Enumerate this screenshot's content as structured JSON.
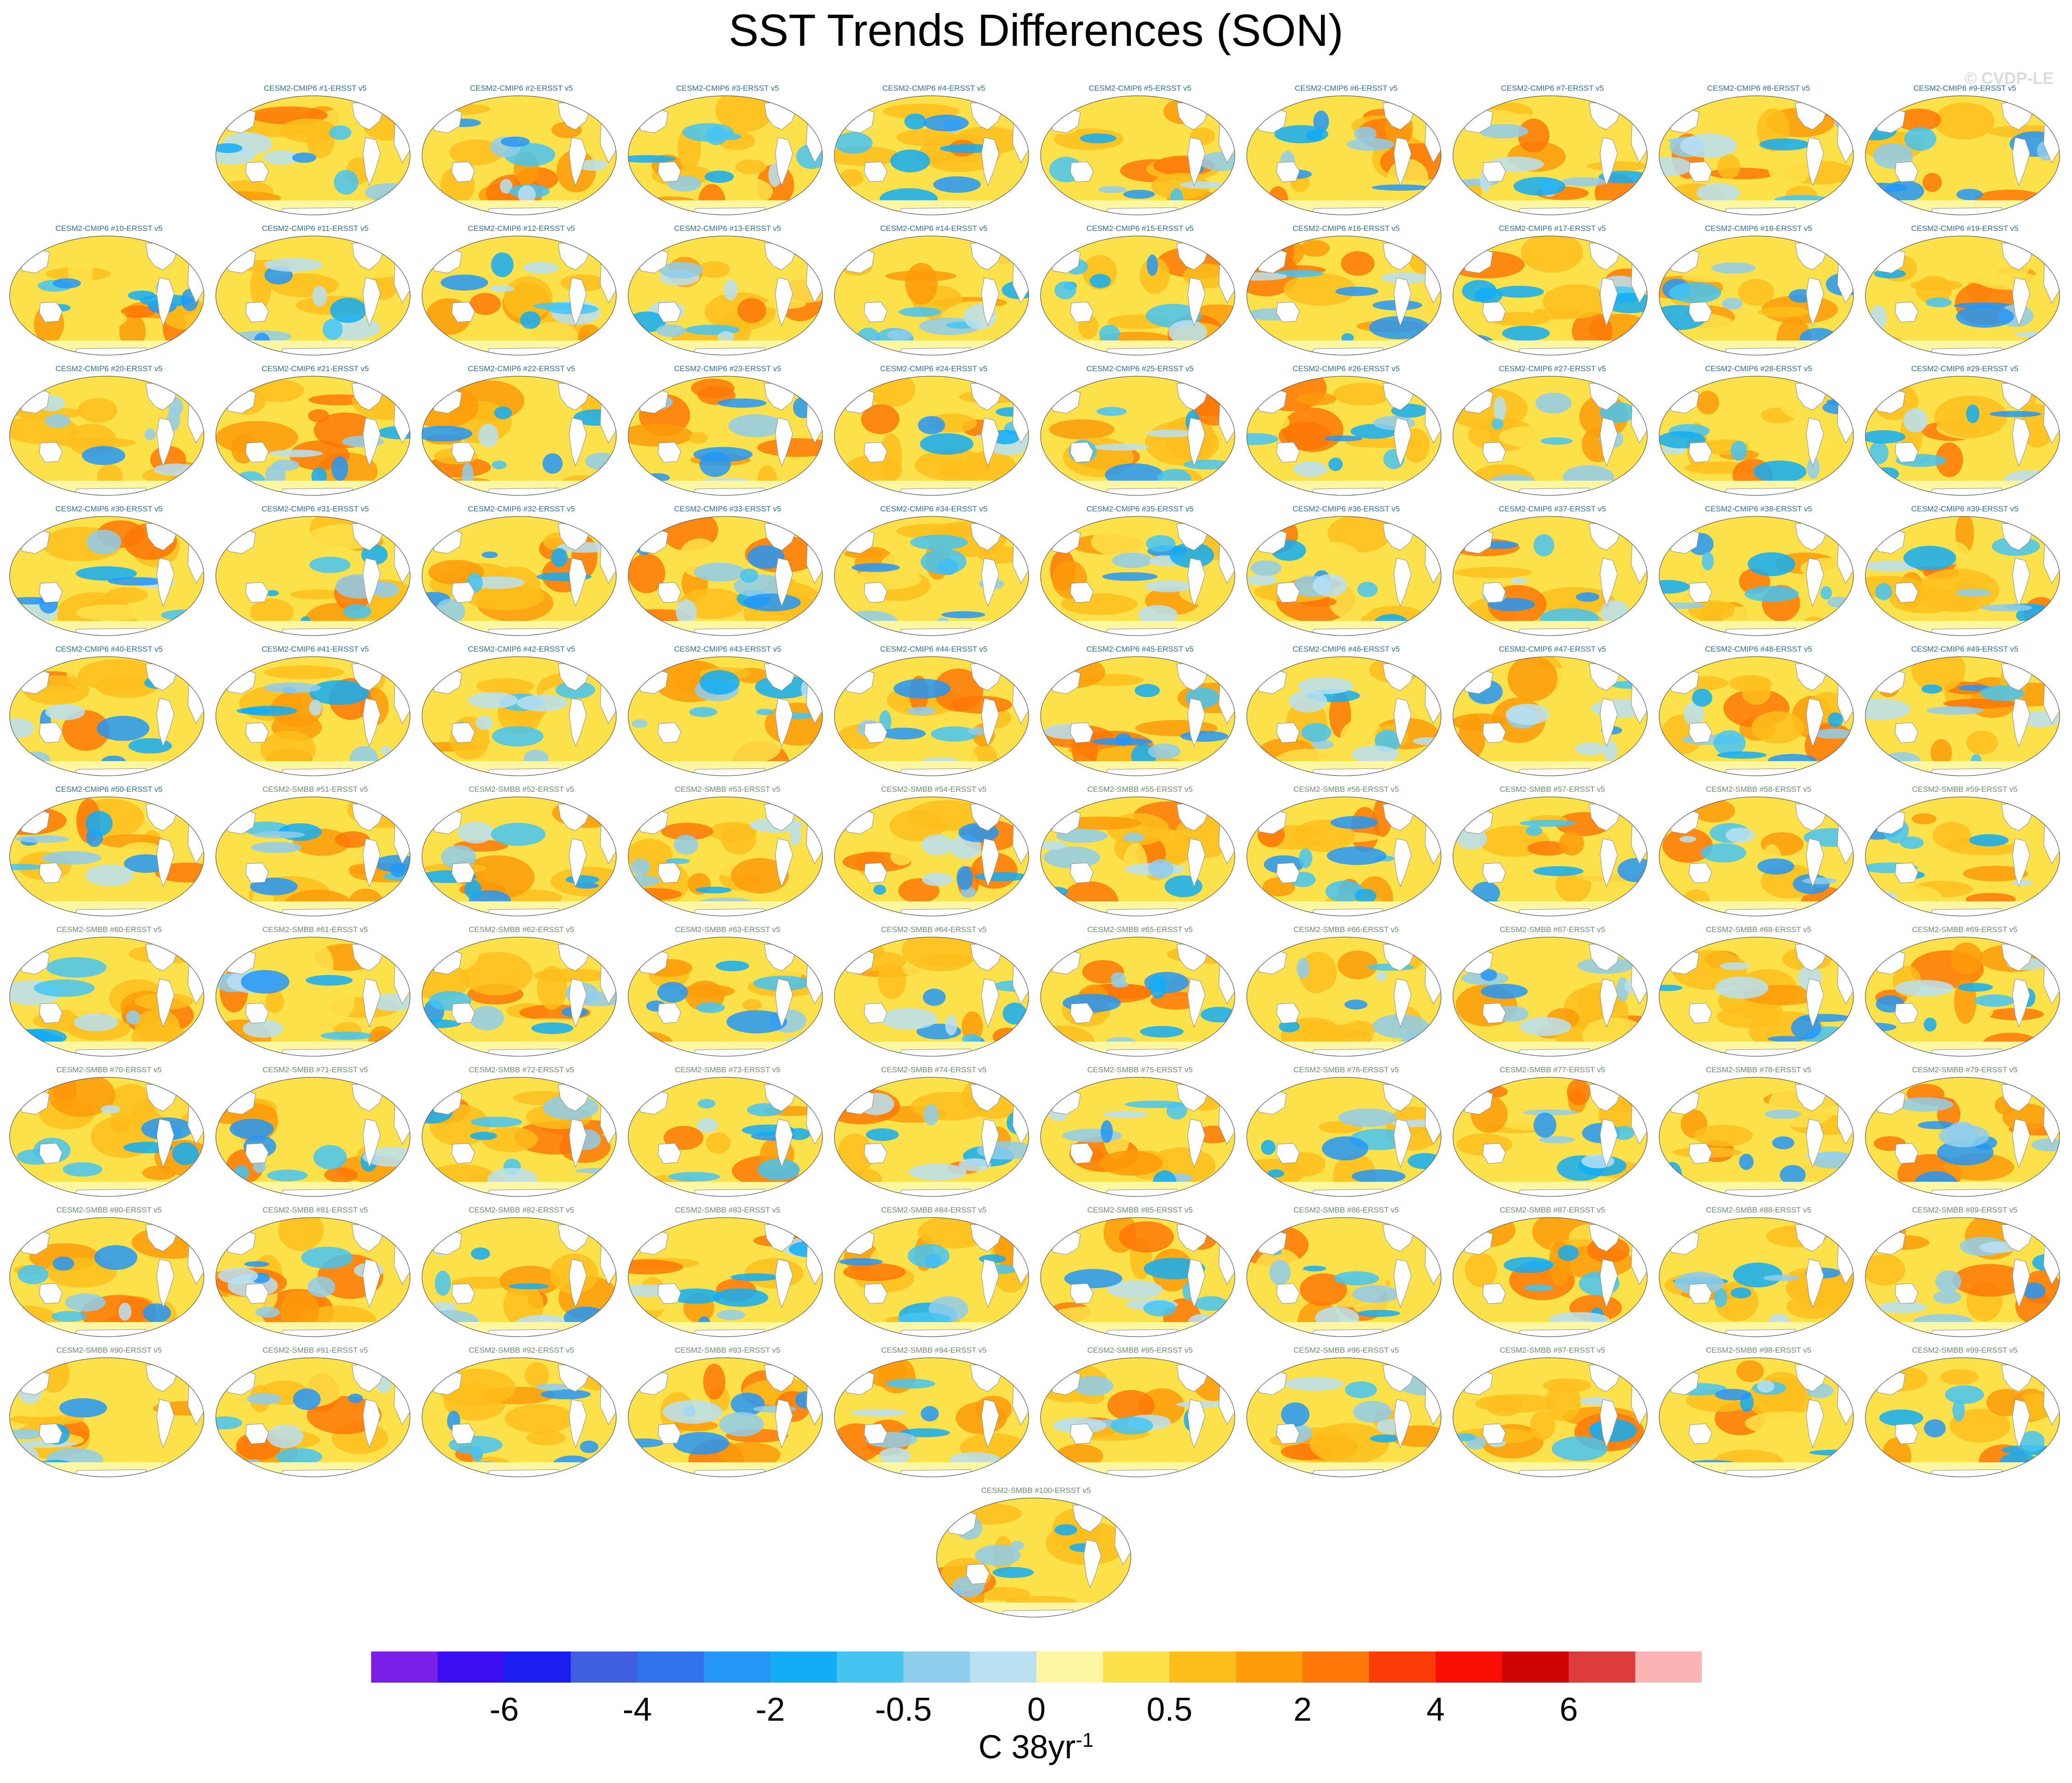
{
  "title": "SST Trends Differences (SON)",
  "watermark": "© CVDP-LE",
  "chart_data": {
    "type": "heatmap",
    "title": "SST Trends Differences (SON)",
    "variable": "SST trend difference (model minus ERSST v5)",
    "season": "SON",
    "projection": "global map (Pacific-centered)",
    "panel_count": 100,
    "panel_labels": [
      "CESM2-CMIP6 #1-ERSST v5",
      "CESM2-CMIP6 #2-ERSST v5",
      "CESM2-CMIP6 #3-ERSST v5",
      "CESM2-CMIP6 #4-ERSST v5",
      "CESM2-CMIP6 #5-ERSST v5",
      "CESM2-CMIP6 #6-ERSST v5",
      "CESM2-CMIP6 #7-ERSST v5",
      "CESM2-CMIP6 #8-ERSST v5",
      "CESM2-CMIP6 #9-ERSST v5",
      "CESM2-CMIP6 #10-ERSST v5",
      "CESM2-CMIP6 #11-ERSST v5",
      "CESM2-CMIP6 #12-ERSST v5",
      "CESM2-CMIP6 #13-ERSST v5",
      "CESM2-CMIP6 #14-ERSST v5",
      "CESM2-CMIP6 #15-ERSST v5",
      "CESM2-CMIP6 #16-ERSST v5",
      "CESM2-CMIP6 #17-ERSST v5",
      "CESM2-CMIP6 #18-ERSST v5",
      "CESM2-CMIP6 #19-ERSST v5",
      "CESM2-CMIP6 #20-ERSST v5",
      "CESM2-CMIP6 #21-ERSST v5",
      "CESM2-CMIP6 #22-ERSST v5",
      "CESM2-CMIP6 #23-ERSST v5",
      "CESM2-CMIP6 #24-ERSST v5",
      "CESM2-CMIP6 #25-ERSST v5",
      "CESM2-CMIP6 #26-ERSST v5",
      "CESM2-CMIP6 #27-ERSST v5",
      "CESM2-CMIP6 #28-ERSST v5",
      "CESM2-CMIP6 #29-ERSST v5",
      "CESM2-CMIP6 #30-ERSST v5",
      "CESM2-CMIP6 #31-ERSST v5",
      "CESM2-CMIP6 #32-ERSST v5",
      "CESM2-CMIP6 #33-ERSST v5",
      "CESM2-CMIP6 #34-ERSST v5",
      "CESM2-CMIP6 #35-ERSST v5",
      "CESM2-CMIP6 #36-ERSST v5",
      "CESM2-CMIP6 #37-ERSST v5",
      "CESM2-CMIP6 #38-ERSST v5",
      "CESM2-CMIP6 #39-ERSST v5",
      "CESM2-CMIP6 #40-ERSST v5",
      "CESM2-CMIP6 #41-ERSST v5",
      "CESM2-CMIP6 #42-ERSST v5",
      "CESM2-CMIP6 #43-ERSST v5",
      "CESM2-CMIP6 #44-ERSST v5",
      "CESM2-CMIP6 #45-ERSST v5",
      "CESM2-CMIP6 #46-ERSST v5",
      "CESM2-CMIP6 #47-ERSST v5",
      "CESM2-CMIP6 #48-ERSST v5",
      "CESM2-CMIP6 #49-ERSST v5",
      "CESM2-CMIP6 #50-ERSST v5",
      "CESM2-SMBB #51-ERSST v5",
      "CESM2-SMBB #52-ERSST v5",
      "CESM2-SMBB #53-ERSST v5",
      "CESM2-SMBB #54-ERSST v5",
      "CESM2-SMBB #55-ERSST v5",
      "CESM2-SMBB #56-ERSST v5",
      "CESM2-SMBB #57-ERSST v5",
      "CESM2-SMBB #58-ERSST v5",
      "CESM2-SMBB #59-ERSST v5",
      "CESM2-SMBB #60-ERSST v5",
      "CESM2-SMBB #61-ERSST v5",
      "CESM2-SMBB #62-ERSST v5",
      "CESM2-SMBB #63-ERSST v5",
      "CESM2-SMBB #64-ERSST v5",
      "CESM2-SMBB #65-ERSST v5",
      "CESM2-SMBB #66-ERSST v5",
      "CESM2-SMBB #67-ERSST v5",
      "CESM2-SMBB #68-ERSST v5",
      "CESM2-SMBB #69-ERSST v5",
      "CESM2-SMBB #70-ERSST v5",
      "CESM2-SMBB #71-ERSST v5",
      "CESM2-SMBB #72-ERSST v5",
      "CESM2-SMBB #73-ERSST v5",
      "CESM2-SMBB #74-ERSST v5",
      "CESM2-SMBB #75-ERSST v5",
      "CESM2-SMBB #76-ERSST v5",
      "CESM2-SMBB #77-ERSST v5",
      "CESM2-SMBB #78-ERSST v5",
      "CESM2-SMBB #79-ERSST v5",
      "CESM2-SMBB #80-ERSST v5",
      "CESM2-SMBB #81-ERSST v5",
      "CESM2-SMBB #82-ERSST v5",
      "CESM2-SMBB #83-ERSST v5",
      "CESM2-SMBB #84-ERSST v5",
      "CESM2-SMBB #85-ERSST v5",
      "CESM2-SMBB #86-ERSST v5",
      "CESM2-SMBB #87-ERSST v5",
      "CESM2-SMBB #88-ERSST v5",
      "CESM2-SMBB #89-ERSST v5",
      "CESM2-SMBB #90-ERSST v5",
      "CESM2-SMBB #91-ERSST v5",
      "CESM2-SMBB #92-ERSST v5",
      "CESM2-SMBB #93-ERSST v5",
      "CESM2-SMBB #94-ERSST v5",
      "CESM2-SMBB #95-ERSST v5",
      "CESM2-SMBB #96-ERSST v5",
      "CESM2-SMBB #97-ERSST v5",
      "CESM2-SMBB #98-ERSST v5",
      "CESM2-SMBB #99-ERSST v5",
      "CESM2-SMBB #100-ERSST v5"
    ],
    "colorbar": {
      "units_base": "C 38yr",
      "units_exponent": "-1",
      "tick_labels": [
        "-6",
        "-4",
        "-2",
        "-0.5",
        "0",
        "0.5",
        "2",
        "4",
        "6"
      ],
      "tick_boundary_index": [
        2,
        4,
        6,
        8,
        10,
        12,
        14,
        16,
        18
      ],
      "colors": [
        "#7b1fe8",
        "#3a0ef0",
        "#1a1ff0",
        "#3f5fe0",
        "#2f72ec",
        "#2396f7",
        "#12adf5",
        "#45c4f2",
        "#8fcdec",
        "#b9e1f2",
        "#fdf6a2",
        "#fde14a",
        "#fdbe1c",
        "#fd9b09",
        "#fd7808",
        "#fc3c06",
        "#f80e05",
        "#cf0505",
        "#dc3c3c",
        "#fbb4b4"
      ]
    },
    "pattern_note": "Each panel is a global SST trend-difference map; predominantly warm (yellow/orange) differences with blue (negative) patches in the tropics/subtropics."
  }
}
